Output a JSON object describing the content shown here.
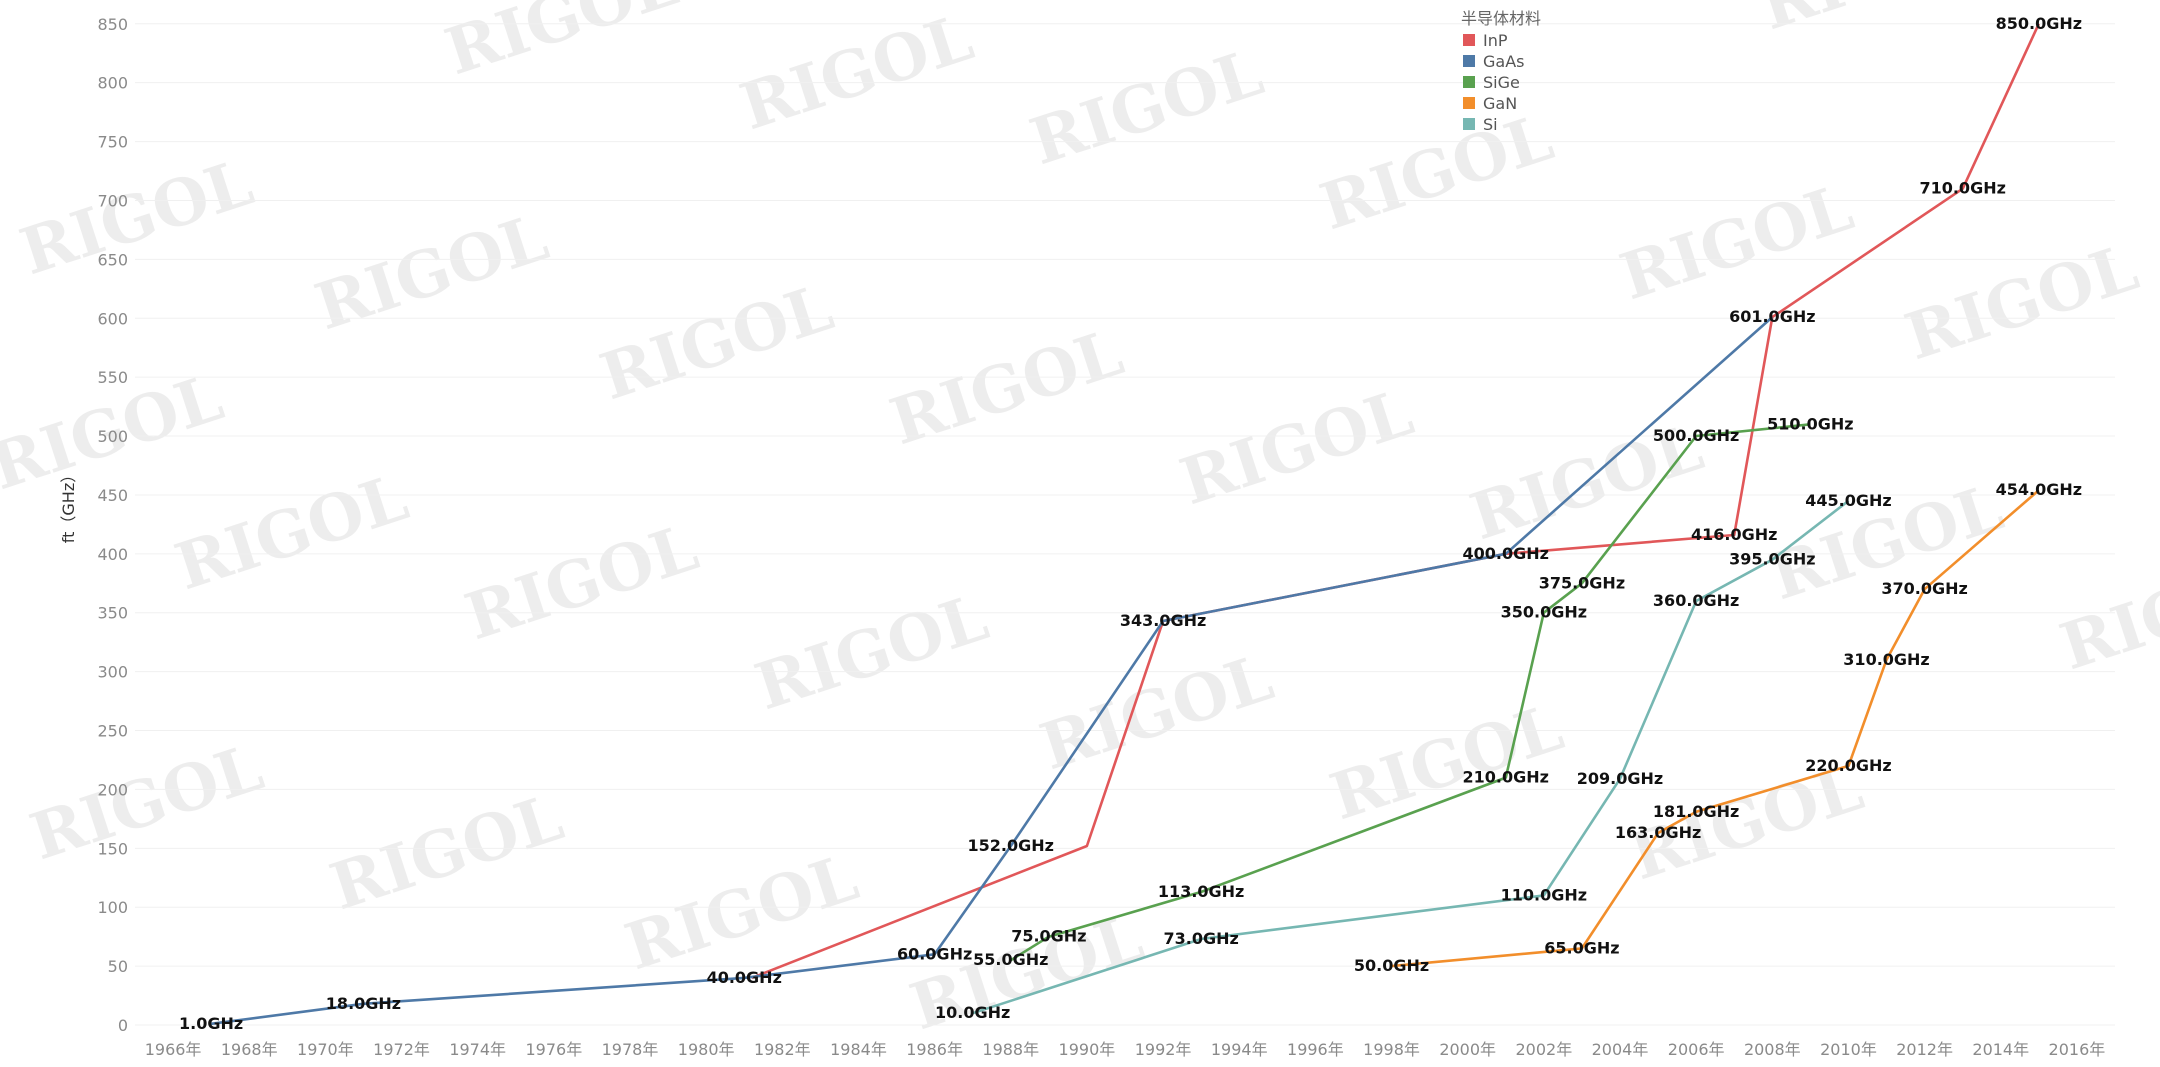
{
  "chart_data": {
    "type": "line",
    "title": "",
    "xlabel": "",
    "ylabel": "ft（GHz）",
    "xlim": [
      1965,
      2017
    ],
    "ylim": [
      0,
      860
    ],
    "x_ticks": [
      "1966年",
      "1968年",
      "1970年",
      "1972年",
      "1974年",
      "1976年",
      "1978年",
      "1980年",
      "1982年",
      "1984年",
      "1986年",
      "1988年",
      "1990年",
      "1992年",
      "1994年",
      "1996年",
      "1998年",
      "2000年",
      "2002年",
      "2004年",
      "2006年",
      "2008年",
      "2010年",
      "2012年",
      "2014年",
      "2016年"
    ],
    "y_ticks": [
      0,
      50,
      100,
      150,
      200,
      250,
      300,
      350,
      400,
      450,
      500,
      550,
      600,
      650,
      700,
      750,
      800,
      850
    ],
    "grid": true,
    "legend": {
      "title": "半导体材料",
      "position": "top-right"
    },
    "watermark": "RIGOL",
    "series": [
      {
        "name": "InP",
        "color": "#e15759",
        "points": [
          {
            "x": 1981.2,
            "y": 40,
            "label": ""
          },
          {
            "x": 1990.0,
            "y": 152,
            "label": ""
          },
          {
            "x": 1992.0,
            "y": 343,
            "label": "343.0GHz"
          },
          {
            "x": 2001.0,
            "y": 400,
            "label": ""
          },
          {
            "x": 2007.0,
            "y": 416,
            "label": "416.0GHz"
          },
          {
            "x": 2008.0,
            "y": 601,
            "label": "601.0GHz"
          },
          {
            "x": 2013.0,
            "y": 710,
            "label": "710.0GHz"
          },
          {
            "x": 2015.0,
            "y": 850,
            "label": "850.0GHz"
          }
        ]
      },
      {
        "name": "GaAs",
        "color": "#4e79a7",
        "points": [
          {
            "x": 1967.0,
            "y": 1,
            "label": "1.0GHz"
          },
          {
            "x": 1971.0,
            "y": 18,
            "label": "18.0GHz"
          },
          {
            "x": 1981.0,
            "y": 40,
            "label": "40.0GHz"
          },
          {
            "x": 1986.0,
            "y": 60,
            "label": "60.0GHz"
          },
          {
            "x": 1988.0,
            "y": 152,
            "label": "152.0GHz"
          },
          {
            "x": 1992.0,
            "y": 343,
            "label": ""
          },
          {
            "x": 2001.0,
            "y": 400,
            "label": "400.0GHz"
          },
          {
            "x": 2008.0,
            "y": 601,
            "label": ""
          }
        ]
      },
      {
        "name": "SiGe",
        "color": "#59a14f",
        "points": [
          {
            "x": 1988.0,
            "y": 55,
            "label": "55.0GHz"
          },
          {
            "x": 1989.0,
            "y": 75,
            "label": "75.0GHz"
          },
          {
            "x": 1993.0,
            "y": 113,
            "label": "113.0GHz"
          },
          {
            "x": 2001.0,
            "y": 210,
            "label": "210.0GHz"
          },
          {
            "x": 2002.0,
            "y": 350,
            "label": "350.0GHz"
          },
          {
            "x": 2003.0,
            "y": 375,
            "label": "375.0GHz"
          },
          {
            "x": 2006.0,
            "y": 500,
            "label": "500.0GHz"
          },
          {
            "x": 2009.0,
            "y": 510,
            "label": "510.0GHz"
          }
        ]
      },
      {
        "name": "GaN",
        "color": "#f28e2b",
        "points": [
          {
            "x": 1998.0,
            "y": 50,
            "label": "50.0GHz"
          },
          {
            "x": 2003.0,
            "y": 65,
            "label": "65.0GHz"
          },
          {
            "x": 2005.0,
            "y": 163,
            "label": "163.0GHz"
          },
          {
            "x": 2006.0,
            "y": 181,
            "label": "181.0GHz"
          },
          {
            "x": 2010.0,
            "y": 220,
            "label": "220.0GHz"
          },
          {
            "x": 2011.0,
            "y": 310,
            "label": "310.0GHz"
          },
          {
            "x": 2012.0,
            "y": 370,
            "label": "370.0GHz"
          },
          {
            "x": 2015.0,
            "y": 454,
            "label": "454.0GHz"
          }
        ]
      },
      {
        "name": "Si",
        "color": "#76b7b2",
        "points": [
          {
            "x": 1987.0,
            "y": 10,
            "label": "10.0GHz"
          },
          {
            "x": 1993.0,
            "y": 73,
            "label": "73.0GHz"
          },
          {
            "x": 2002.0,
            "y": 110,
            "label": "110.0GHz"
          },
          {
            "x": 2004.0,
            "y": 209,
            "label": "209.0GHz"
          },
          {
            "x": 2006.0,
            "y": 360,
            "label": "360.0GHz"
          },
          {
            "x": 2008.0,
            "y": 395,
            "label": "395.0GHz"
          },
          {
            "x": 2010.0,
            "y": 445,
            "label": "445.0GHz"
          }
        ]
      }
    ]
  }
}
